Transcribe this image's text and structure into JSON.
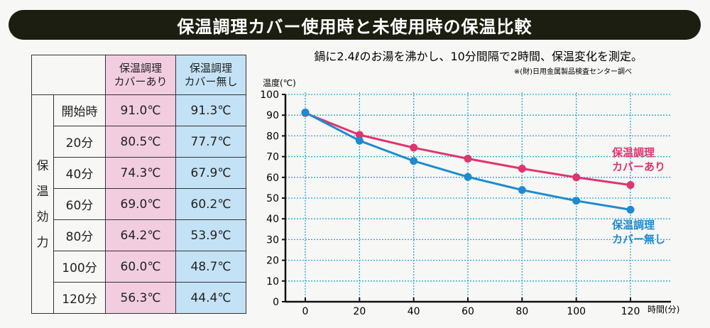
{
  "title": "保温調理カバー使用時と未使用時の保温比較",
  "table": {
    "headers": [
      "保温調理\nカバーあり",
      "保温調理\nカバー無し"
    ],
    "side_label": "保温効力",
    "rows": [
      {
        "label": "開始時",
        "with": "91.0℃",
        "without": "91.3℃"
      },
      {
        "label": "20分",
        "with": "80.5℃",
        "without": "77.7℃"
      },
      {
        "label": "40分",
        "with": "74.3℃",
        "without": "67.9℃"
      },
      {
        "label": "60分",
        "with": "69.0℃",
        "without": "60.2℃"
      },
      {
        "label": "80分",
        "with": "64.2℃",
        "without": "53.9℃"
      },
      {
        "label": "100分",
        "with": "60.0℃",
        "without": "48.7℃"
      },
      {
        "label": "120分",
        "with": "56.3℃",
        "without": "44.4℃"
      }
    ]
  },
  "chart_data": {
    "type": "line",
    "title": "鍋に2.4ℓのお湯を沸かし、10分間隔で2時間、保温変化を測定。",
    "subtitle": "※(財)日用金属製品検査センター調べ",
    "ylabel": "温度(℃)",
    "xlabel": "時間(分)",
    "x": [
      0,
      20,
      40,
      60,
      80,
      100,
      120
    ],
    "xticks": [
      "0",
      "20",
      "40",
      "60",
      "80",
      "100",
      "120"
    ],
    "yticks": [
      "0",
      "10",
      "20",
      "30",
      "40",
      "50",
      "60",
      "70",
      "80",
      "90",
      "100"
    ],
    "ylim": [
      0,
      100
    ],
    "grid": true,
    "series": [
      {
        "name": "保温調理カバーあり",
        "color": "#e2336e",
        "values": [
          91.0,
          80.5,
          74.3,
          69.0,
          64.2,
          60.0,
          56.3
        ]
      },
      {
        "name": "保温調理カバー無し",
        "color": "#1e8bd0",
        "values": [
          91.3,
          77.7,
          67.9,
          60.2,
          53.9,
          48.7,
          44.4
        ]
      }
    ]
  }
}
